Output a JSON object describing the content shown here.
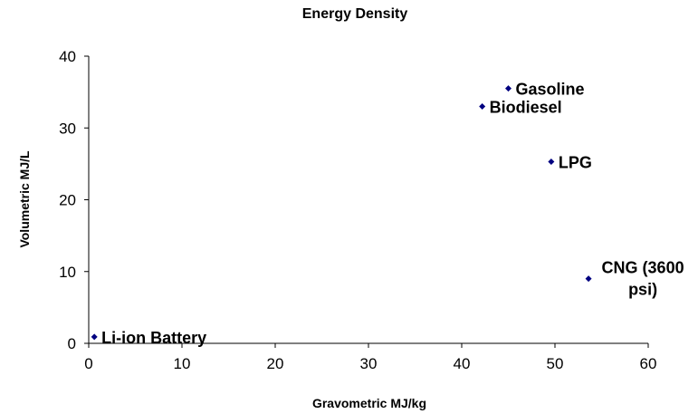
{
  "chart_data": {
    "type": "scatter",
    "title": "Energy Density",
    "xlabel": "Gravometric MJ/kg",
    "ylabel": "Volumetric MJ/L",
    "xlim": [
      0,
      60
    ],
    "ylim": [
      0,
      40
    ],
    "xticks": [
      "0",
      "10",
      "20",
      "30",
      "40",
      "50",
      "60"
    ],
    "yticks": [
      "0",
      "10",
      "20",
      "30",
      "40"
    ],
    "grid": false,
    "legend": "none",
    "marker_color": "#000080",
    "points": [
      {
        "label": "Gasoline",
        "x": 45,
        "y": 35.5
      },
      {
        "label": "Biodiesel",
        "x": 42.2,
        "y": 33
      },
      {
        "label": "LPG",
        "x": 49.6,
        "y": 25.3
      },
      {
        "label_lines": [
          "CNG (3600",
          "psi)"
        ],
        "x": 53.6,
        "y": 9
      },
      {
        "label": "Li-ion Battery",
        "x": 0.6,
        "y": 0.9
      }
    ]
  }
}
